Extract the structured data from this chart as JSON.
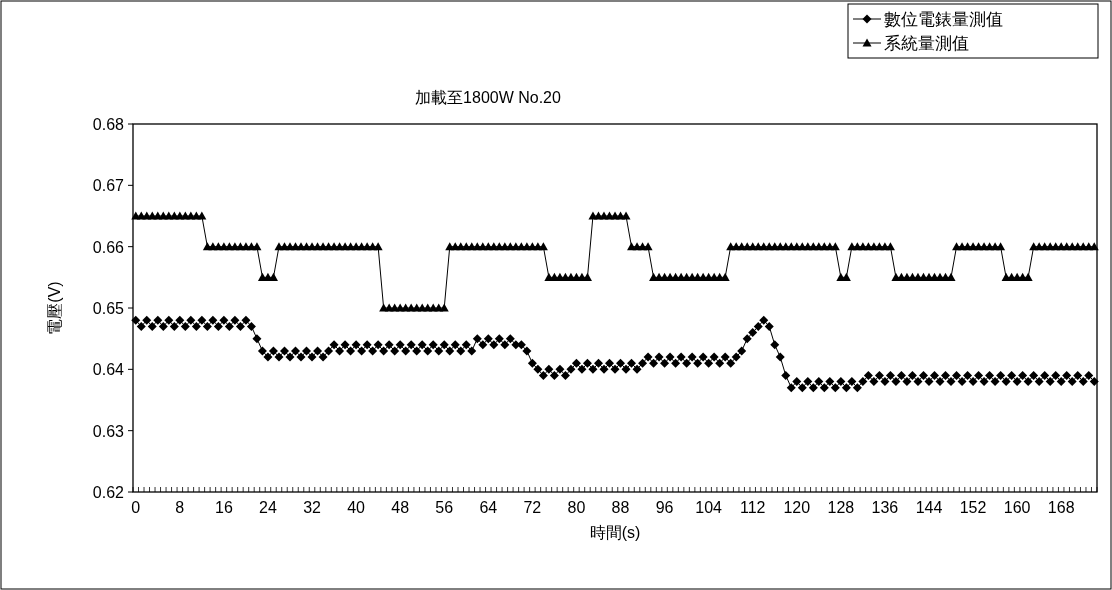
{
  "chart_data": {
    "type": "line",
    "title": "加載至1800W No.20",
    "xlabel": "時間(s)",
    "ylabel": "電壓(V)",
    "categories": [
      "0",
      null,
      null,
      null,
      null,
      null,
      null,
      null,
      "8",
      null,
      null,
      null,
      null,
      null,
      null,
      null,
      "16",
      null,
      null,
      null,
      null,
      null,
      null,
      null,
      "24",
      null,
      null,
      null,
      null,
      null,
      null,
      null,
      "32",
      null,
      null,
      null,
      null,
      null,
      null,
      null,
      "40",
      null,
      null,
      null,
      null,
      null,
      null,
      null,
      "48",
      null,
      null,
      null,
      null,
      null,
      null,
      null,
      "56",
      null,
      null,
      null,
      null,
      null,
      null,
      null,
      "64",
      null,
      null,
      null,
      null,
      null,
      null,
      null,
      "72",
      null,
      null,
      null,
      null,
      null,
      null,
      null,
      "80",
      null,
      null,
      null,
      null,
      null,
      null,
      null,
      "88",
      null,
      null,
      null,
      null,
      null,
      null,
      null,
      "96",
      null,
      null,
      null,
      null,
      null,
      null,
      null,
      "104",
      null,
      null,
      null,
      null,
      null,
      null,
      null,
      "112",
      null,
      null,
      null,
      null,
      null,
      null,
      null,
      "120",
      null,
      null,
      null,
      null,
      null,
      null,
      null,
      "128",
      null,
      null,
      null,
      null,
      null,
      null,
      null,
      "136",
      null,
      null,
      null,
      null,
      null,
      null,
      null,
      "144",
      null,
      null,
      null,
      null,
      null,
      null,
      null,
      "152",
      null,
      null,
      null,
      null,
      null,
      null,
      null,
      "160",
      null,
      null,
      null,
      null,
      null,
      null,
      null,
      "168",
      null,
      null,
      null,
      null,
      null,
      null
    ],
    "series": [
      {
        "name": "數位電錶量測值",
        "color": "#000000",
        "marker": "diamond",
        "values": [
          0.648,
          0.647,
          0.648,
          0.647,
          0.648,
          0.647,
          0.648,
          0.647,
          0.648,
          0.647,
          0.648,
          0.647,
          0.648,
          0.647,
          0.648,
          0.647,
          0.648,
          0.647,
          0.648,
          0.647,
          0.648,
          0.647,
          0.645,
          0.643,
          0.642,
          0.643,
          0.642,
          0.643,
          0.642,
          0.643,
          0.642,
          0.643,
          0.642,
          0.643,
          0.642,
          0.643,
          0.644,
          0.643,
          0.644,
          0.643,
          0.644,
          0.643,
          0.644,
          0.643,
          0.644,
          0.643,
          0.644,
          0.643,
          0.644,
          0.643,
          0.644,
          0.643,
          0.644,
          0.643,
          0.644,
          0.643,
          0.644,
          0.643,
          0.644,
          0.643,
          0.644,
          0.643,
          0.645,
          0.644,
          0.645,
          0.644,
          0.645,
          0.644,
          0.645,
          0.644,
          0.644,
          0.643,
          0.641,
          0.64,
          0.639,
          0.64,
          0.639,
          0.64,
          0.639,
          0.64,
          0.641,
          0.64,
          0.641,
          0.64,
          0.641,
          0.64,
          0.641,
          0.64,
          0.641,
          0.64,
          0.641,
          0.64,
          0.641,
          0.642,
          0.641,
          0.642,
          0.641,
          0.642,
          0.641,
          0.642,
          0.641,
          0.642,
          0.641,
          0.642,
          0.641,
          0.642,
          0.641,
          0.642,
          0.641,
          0.642,
          0.643,
          0.645,
          0.646,
          0.647,
          0.648,
          0.647,
          0.644,
          0.642,
          0.639,
          0.637,
          0.638,
          0.637,
          0.638,
          0.637,
          0.638,
          0.637,
          0.638,
          0.637,
          0.638,
          0.637,
          0.638,
          0.637,
          0.638,
          0.639,
          0.638,
          0.639,
          0.638,
          0.639,
          0.638,
          0.639,
          0.638,
          0.639,
          0.638,
          0.639,
          0.638,
          0.639,
          0.638,
          0.639,
          0.638,
          0.639,
          0.638,
          0.639,
          0.638,
          0.639,
          0.638,
          0.639,
          0.638,
          0.639,
          0.638,
          0.639,
          0.638,
          0.639,
          0.638,
          0.639,
          0.638,
          0.639,
          0.638,
          0.639,
          0.638,
          0.639,
          0.638,
          0.639,
          0.638,
          0.639,
          0.638
        ]
      },
      {
        "name": "系統量測值",
        "color": "#000000",
        "marker": "triangle",
        "values": [
          0.665,
          0.665,
          0.665,
          0.665,
          0.665,
          0.665,
          0.665,
          0.665,
          0.665,
          0.665,
          0.665,
          0.665,
          0.665,
          0.66,
          0.66,
          0.66,
          0.66,
          0.66,
          0.66,
          0.66,
          0.66,
          0.66,
          0.66,
          0.655,
          0.655,
          0.655,
          0.66,
          0.66,
          0.66,
          0.66,
          0.66,
          0.66,
          0.66,
          0.66,
          0.66,
          0.66,
          0.66,
          0.66,
          0.66,
          0.66,
          0.66,
          0.66,
          0.66,
          0.66,
          0.66,
          0.65,
          0.65,
          0.65,
          0.65,
          0.65,
          0.65,
          0.65,
          0.65,
          0.65,
          0.65,
          0.65,
          0.65,
          0.66,
          0.66,
          0.66,
          0.66,
          0.66,
          0.66,
          0.66,
          0.66,
          0.66,
          0.66,
          0.66,
          0.66,
          0.66,
          0.66,
          0.66,
          0.66,
          0.66,
          0.66,
          0.655,
          0.655,
          0.655,
          0.655,
          0.655,
          0.655,
          0.655,
          0.655,
          0.665,
          0.665,
          0.665,
          0.665,
          0.665,
          0.665,
          0.665,
          0.66,
          0.66,
          0.66,
          0.66,
          0.655,
          0.655,
          0.655,
          0.655,
          0.655,
          0.655,
          0.655,
          0.655,
          0.655,
          0.655,
          0.655,
          0.655,
          0.655,
          0.655,
          0.66,
          0.66,
          0.66,
          0.66,
          0.66,
          0.66,
          0.66,
          0.66,
          0.66,
          0.66,
          0.66,
          0.66,
          0.66,
          0.66,
          0.66,
          0.66,
          0.66,
          0.66,
          0.66,
          0.66,
          0.655,
          0.655,
          0.66,
          0.66,
          0.66,
          0.66,
          0.66,
          0.66,
          0.66,
          0.66,
          0.655,
          0.655,
          0.655,
          0.655,
          0.655,
          0.655,
          0.655,
          0.655,
          0.655,
          0.655,
          0.655,
          0.66,
          0.66,
          0.66,
          0.66,
          0.66,
          0.66,
          0.66,
          0.66,
          0.66,
          0.655,
          0.655,
          0.655,
          0.655,
          0.655,
          0.66,
          0.66,
          0.66,
          0.66,
          0.66,
          0.66,
          0.66,
          0.66,
          0.66,
          0.66,
          0.66,
          0.66
        ]
      }
    ],
    "ylim": [
      0.62,
      0.68
    ],
    "yticks": [
      0.62,
      0.63,
      0.64,
      0.65,
      0.66,
      0.67,
      0.68
    ],
    "legend": "top right"
  }
}
